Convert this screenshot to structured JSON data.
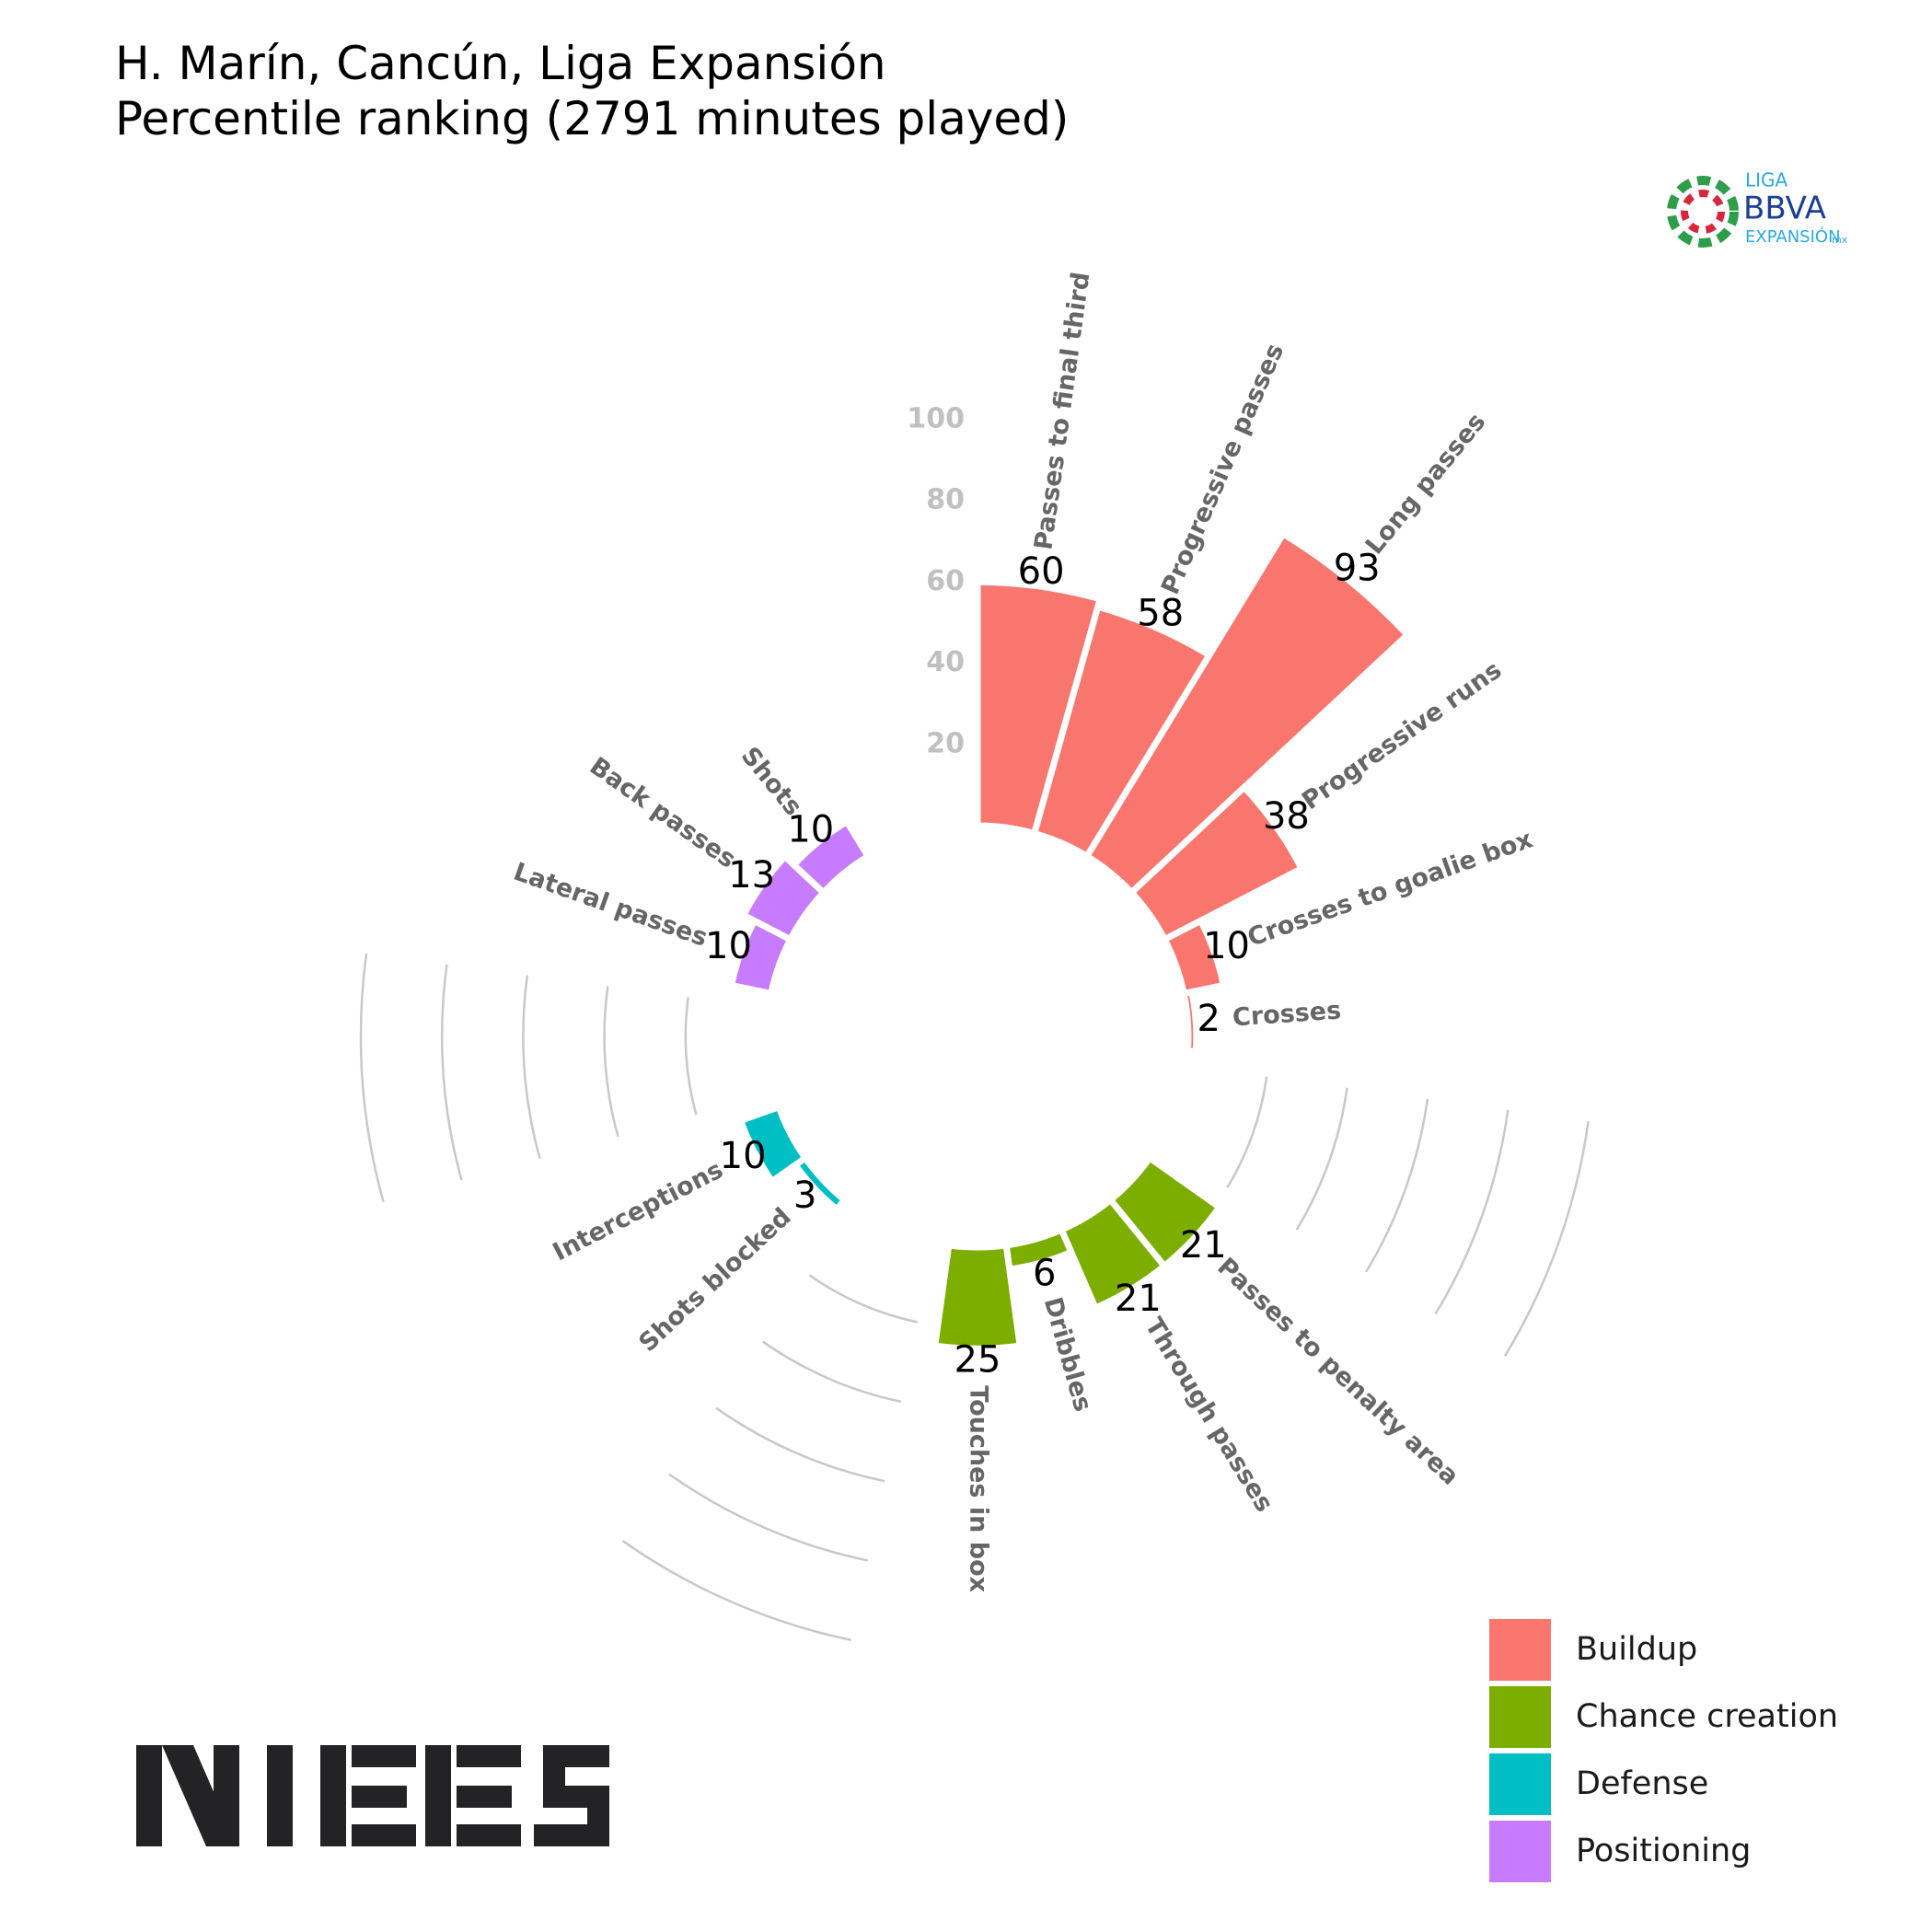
{
  "chart_data": {
    "type": "polar_bar",
    "title": "H. Marín, Cancún, Liga Expansión",
    "subtitle": "Percentile ranking (2791 minutes played)",
    "categories": [
      "Passes to final third",
      "Progressive passes",
      "Long passes",
      "Progressive runs",
      "Crosses to goalie box",
      "Crosses",
      null,
      null,
      "Passes to penalty area",
      "Through passes",
      "Dribbles",
      "Touches in box",
      null,
      null,
      "Shots blocked",
      "Interceptions",
      null,
      null,
      "Lateral passes",
      "Back passes",
      "Shots",
      null,
      null
    ],
    "series": [
      {
        "name": "Buildup",
        "color": "#F8766D",
        "values": [
          60,
          58,
          93,
          38,
          10,
          2,
          null,
          null,
          null,
          null,
          null,
          null,
          null,
          null,
          null,
          null,
          null,
          null,
          null,
          null,
          null,
          null,
          null
        ]
      },
      {
        "name": "Chance creation",
        "color": "#7CAE00",
        "values": [
          null,
          null,
          null,
          null,
          null,
          null,
          null,
          null,
          21,
          21,
          6,
          25,
          null,
          null,
          null,
          null,
          null,
          null,
          null,
          null,
          null,
          null,
          null
        ]
      },
      {
        "name": "Defense",
        "color": "#00BFC4",
        "values": [
          null,
          null,
          null,
          null,
          null,
          null,
          null,
          null,
          null,
          null,
          null,
          null,
          null,
          null,
          3,
          10,
          null,
          null,
          null,
          null,
          null,
          null,
          null
        ]
      },
      {
        "name": "Positioning",
        "color": "#C77CFF",
        "values": [
          null,
          null,
          null,
          null,
          null,
          null,
          null,
          null,
          null,
          null,
          null,
          null,
          null,
          null,
          null,
          null,
          null,
          null,
          10,
          13,
          10,
          null,
          null
        ]
      }
    ],
    "ylim": [
      0,
      100
    ],
    "yticks": [
      20,
      40,
      60,
      80,
      100
    ],
    "grid": true,
    "legend": "bottom-right"
  },
  "logo_text": [
    "LIGA",
    "BBVA",
    "EXPANSIÓN",
    "mx"
  ]
}
